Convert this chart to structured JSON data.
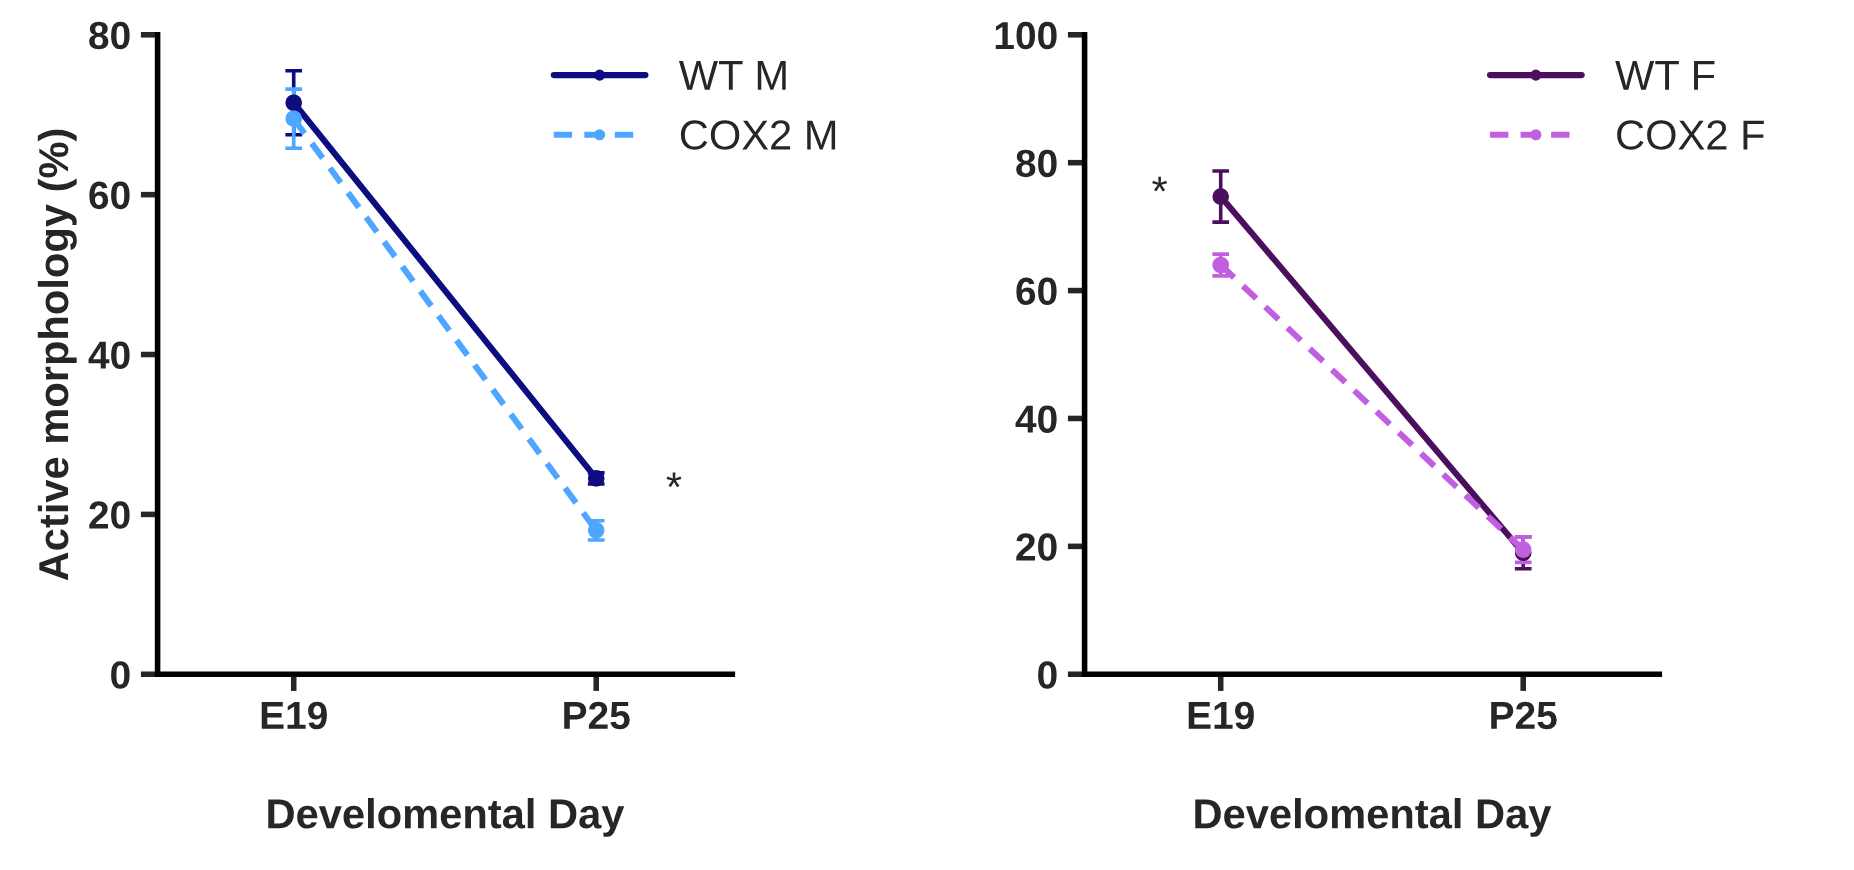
{
  "chart_data": [
    {
      "type": "line",
      "categories": [
        "E19",
        "P25"
      ],
      "xlabel": "Develomental Day",
      "ylabel": "Active morphology (%)",
      "ylim": [
        0,
        80
      ],
      "yticks": [
        0,
        20,
        40,
        60,
        80
      ],
      "legend": "top right",
      "marker": "circle",
      "grid": false,
      "series": [
        {
          "name": "WT M",
          "color": "#0d0d80",
          "values": [
            71.5,
            24.5
          ],
          "errors": [
            4,
            0.7
          ],
          "line_style": "solid"
        },
        {
          "name": "COX2 M",
          "color": "#4da6ff",
          "values": [
            69.5,
            18
          ],
          "errors": [
            3.7,
            1.2
          ],
          "line_style": "dashed"
        }
      ],
      "annotations": [
        {
          "text": "*",
          "x": "P25",
          "y": 23
        }
      ]
    },
    {
      "type": "line",
      "categories": [
        "E19",
        "P25"
      ],
      "xlabel": "Develomental Day",
      "ylim": [
        0,
        100
      ],
      "yticks": [
        0,
        20,
        40,
        60,
        80,
        100
      ],
      "legend": "top right",
      "marker": "circle",
      "grid": false,
      "series": [
        {
          "name": "WT F",
          "color": "#4b0f5e",
          "values": [
            74.7,
            19
          ],
          "errors": [
            4,
            2.5
          ],
          "line_style": "solid"
        },
        {
          "name": "COX2 F",
          "color": "#c060e0",
          "values": [
            64,
            19.5
          ],
          "errors": [
            1.7,
            2
          ],
          "line_style": "dashed"
        }
      ],
      "annotations": [
        {
          "text": "*",
          "x": "E19",
          "y": 75
        }
      ]
    }
  ]
}
